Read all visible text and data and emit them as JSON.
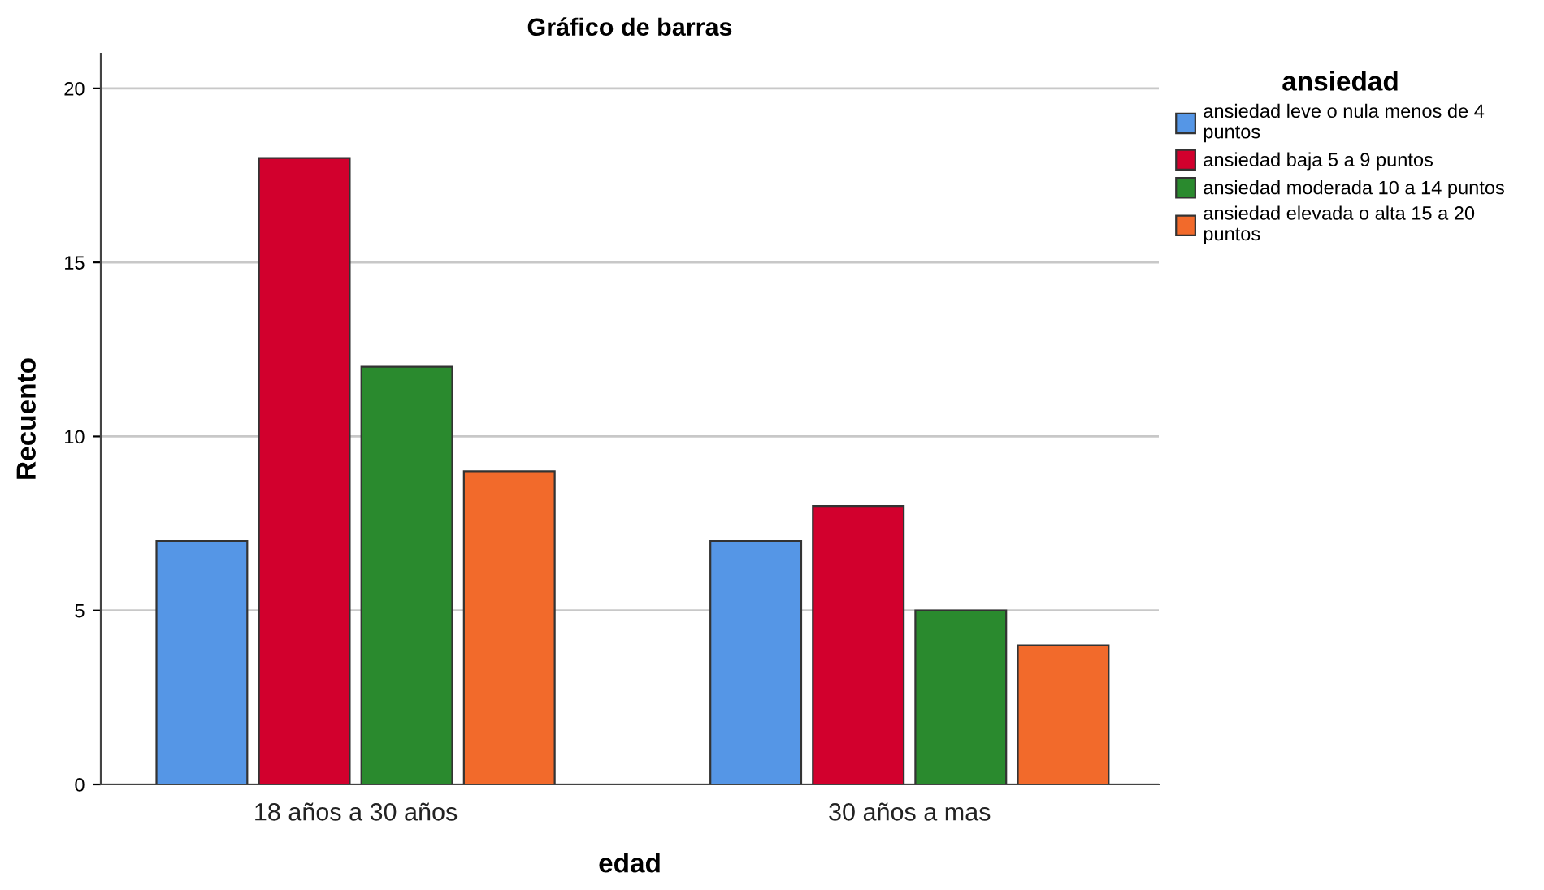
{
  "chart_data": {
    "type": "bar",
    "title": "Gráfico de barras",
    "xlabel": "edad",
    "ylabel": "Recuento",
    "legend_title": "ansiedad",
    "categories": [
      "18 años a 30 años",
      "30 años a mas"
    ],
    "series": [
      {
        "name": "ansiedad leve o nula menos de 4 puntos",
        "color": "#5596e6",
        "values": [
          7,
          7
        ]
      },
      {
        "name": "ansiedad baja 5 a 9 puntos",
        "color": "#d2002d",
        "values": [
          18,
          8
        ]
      },
      {
        "name": "ansiedad moderada 10 a 14 puntos",
        "color": "#2a8a2e",
        "values": [
          12,
          5
        ]
      },
      {
        "name": "ansiedad elevada o alta 15 a 20 puntos",
        "color": "#f26a2b",
        "values": [
          9,
          4
        ]
      }
    ],
    "ylim": [
      0,
      21
    ],
    "yticks": [
      0,
      5,
      10,
      15,
      20
    ],
    "grid": "y",
    "legend": "right"
  }
}
